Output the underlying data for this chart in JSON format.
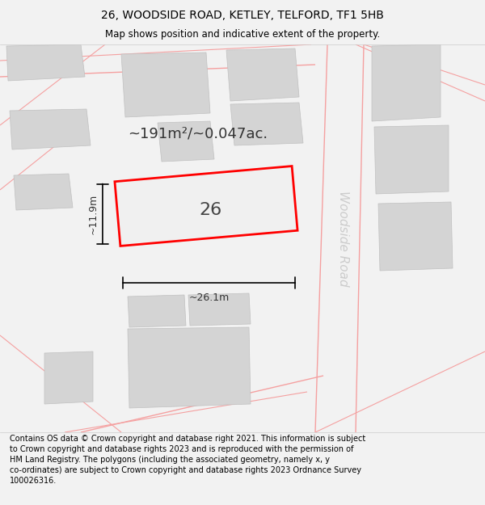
{
  "title": "26, WOODSIDE ROAD, KETLEY, TELFORD, TF1 5HB",
  "subtitle": "Map shows position and indicative extent of the property.",
  "footer": "Contains OS data © Crown copyright and database right 2021. This information is subject\nto Crown copyright and database rights 2023 and is reproduced with the permission of\nHM Land Registry. The polygons (including the associated geometry, namely x, y\nco-ordinates) are subject to Crown copyright and database rights 2023 Ordnance Survey\n100026316.",
  "area_label": "~191m²/~0.047ac.",
  "house_number": "26",
  "width_label": "~26.1m",
  "height_label": "~11.9m",
  "road_label": "Woodside Road",
  "bg_color": "#f2f2f2",
  "map_bg": "#ffffff",
  "plot_color_edge": "#ff0000",
  "road_line_color": "#f5a0a0",
  "building_fill": "#d4d4d4",
  "dim_line_color": "#000000",
  "title_fontsize": 10,
  "subtitle_fontsize": 8.5,
  "footer_fontsize": 7.0,
  "area_fontsize": 13,
  "number_fontsize": 16,
  "dim_fontsize": 9,
  "road_fontsize": 11
}
